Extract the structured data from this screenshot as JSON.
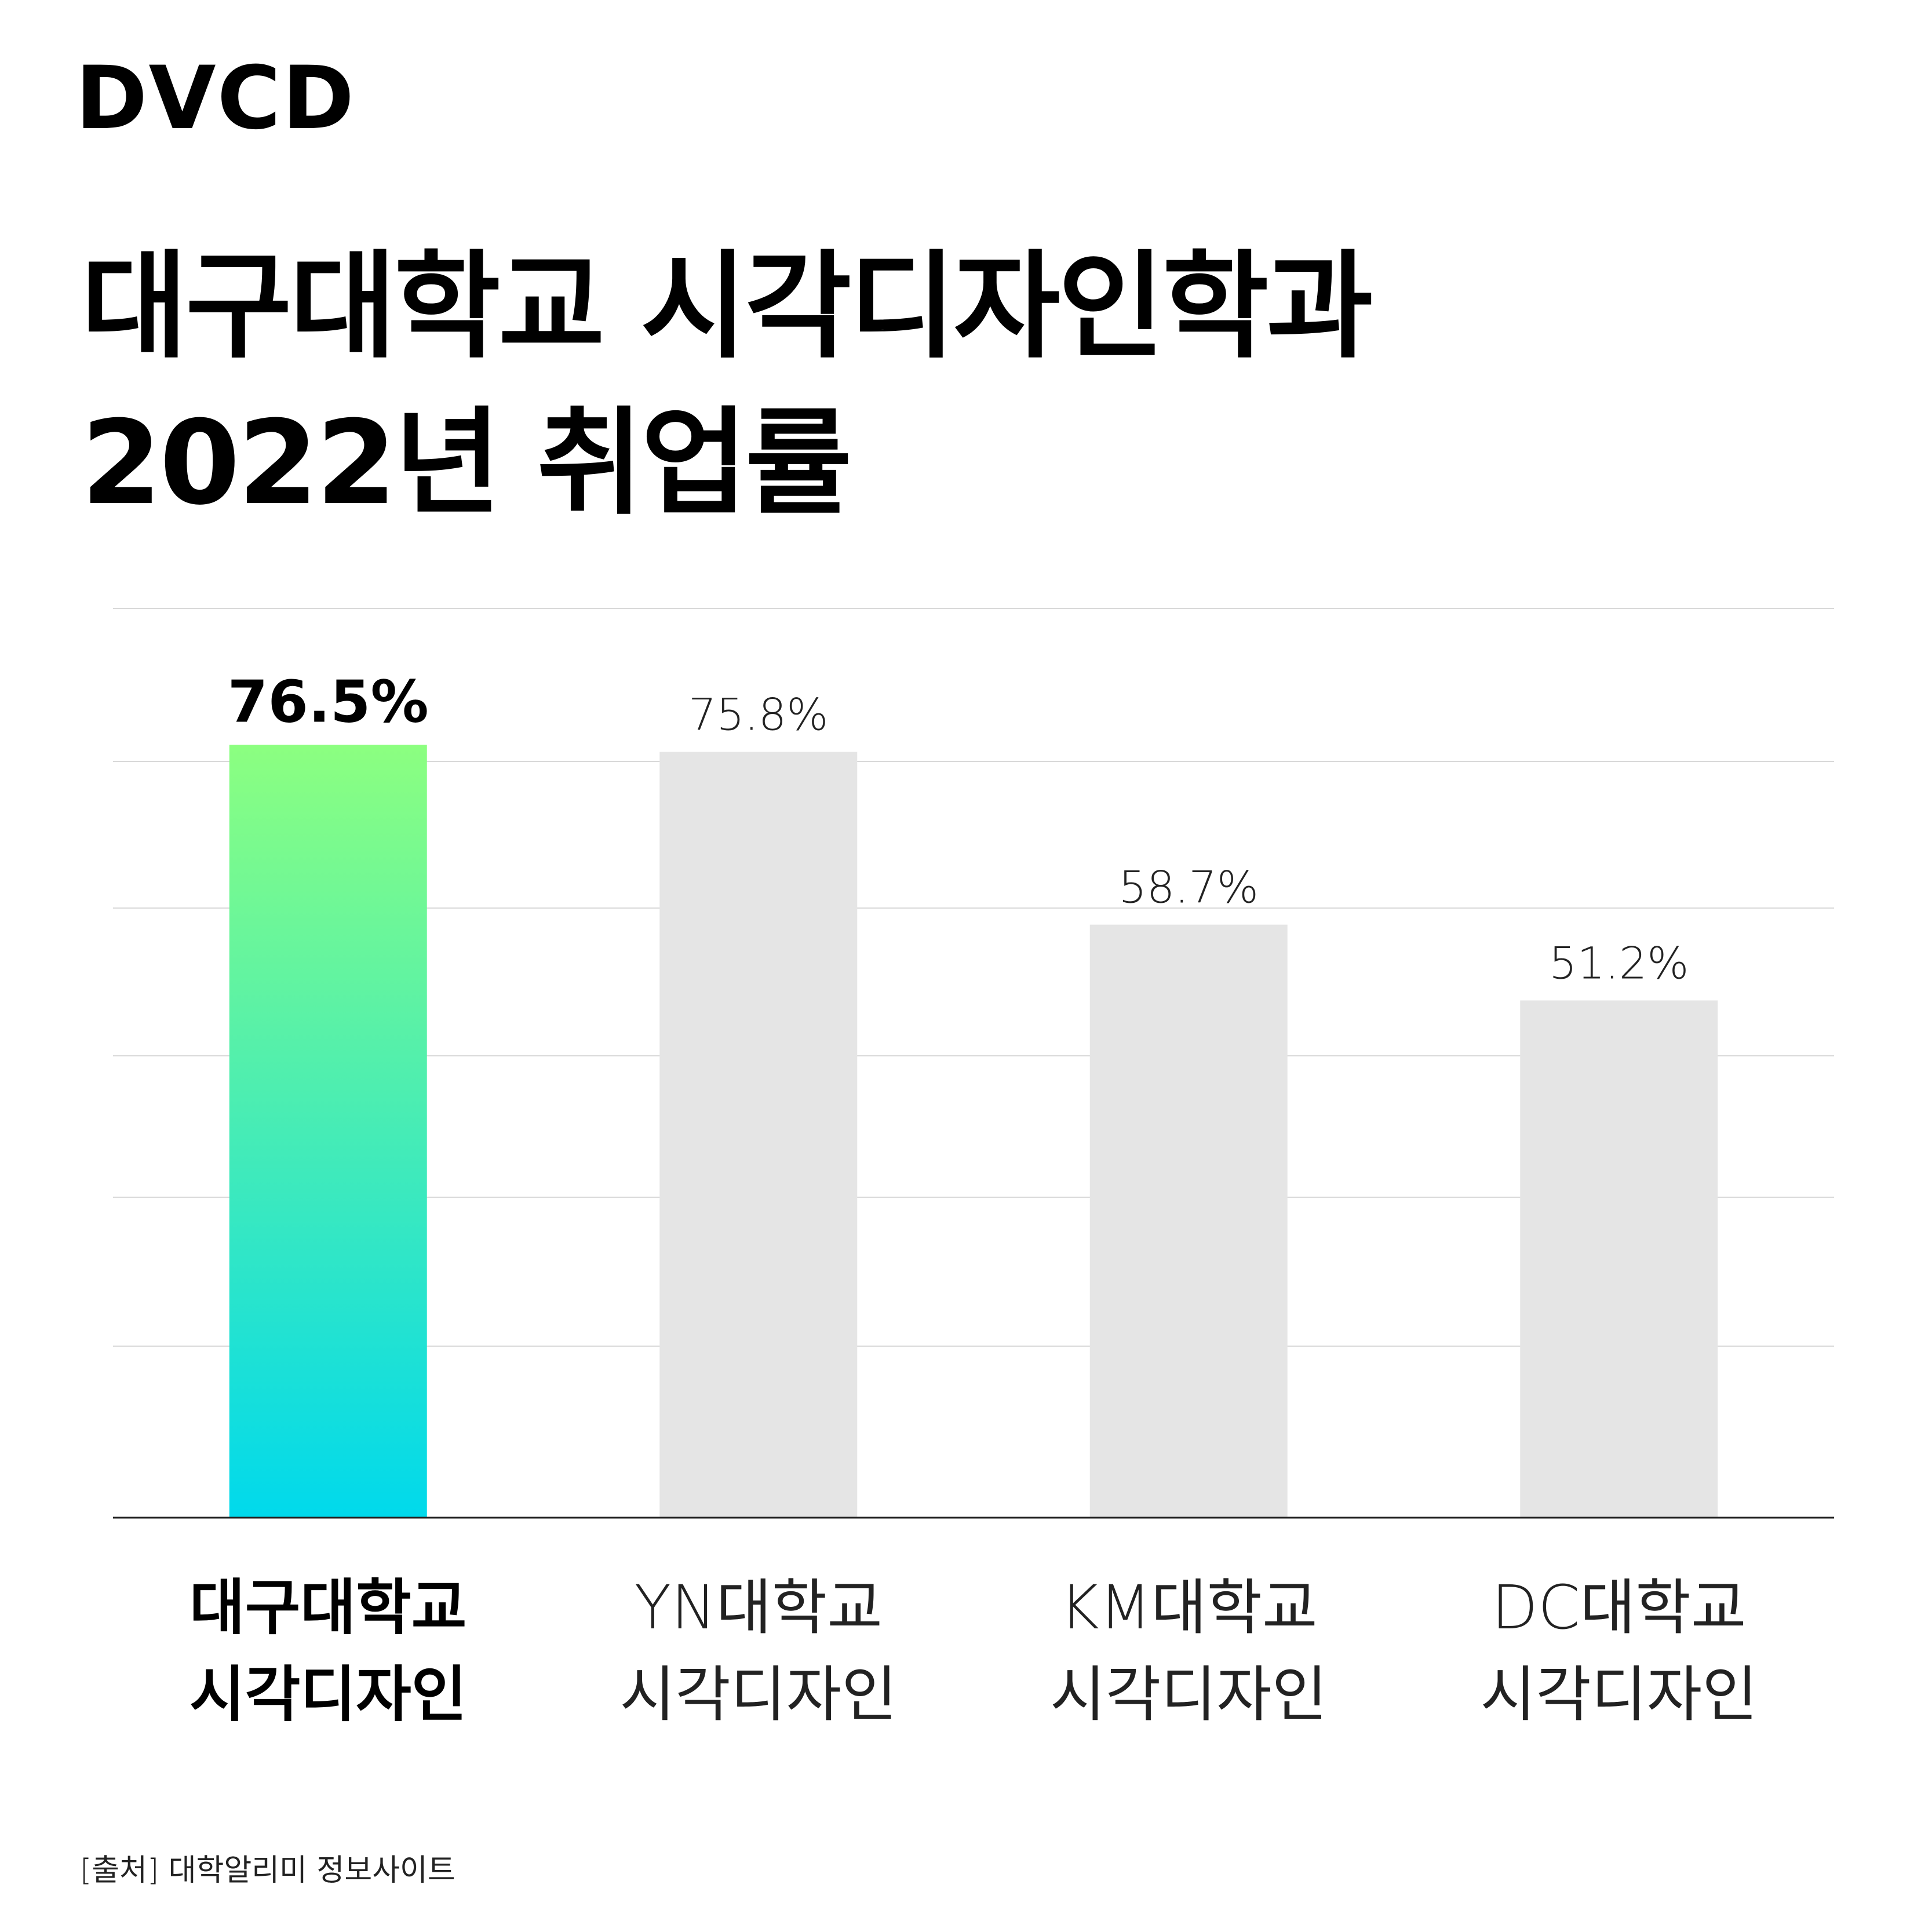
{
  "brand": {
    "logo_text": "DVCD"
  },
  "title": {
    "line1": "대구대학교 시각디자인학과",
    "line2": "2022년 취업률"
  },
  "source": "[출처] 대학알리미 정보사이트",
  "colors": {
    "highlight_gradient_top": "#8cff80",
    "highlight_gradient_bottom": "#00d9ec",
    "other_bars": "#e5e5e5",
    "grid": "#d9d9d9",
    "axis": "#222222"
  },
  "chart_data": {
    "type": "bar",
    "categories": [
      [
        "대구대학교",
        "시각디자인"
      ],
      [
        "YN대학교",
        "시각디자인"
      ],
      [
        "KM대학교",
        "시각디자인"
      ],
      [
        "DC대학교",
        "시각디자인"
      ]
    ],
    "values": [
      76.5,
      75.8,
      58.7,
      51.2
    ],
    "value_labels": [
      "76.5%",
      "75.8%",
      "58.7%",
      "51.2%"
    ],
    "highlight_index": 0,
    "unit": "%",
    "ylim": [
      0,
      90
    ],
    "grid": true,
    "legend": "none",
    "title": "",
    "xlabel": "",
    "ylabel": ""
  }
}
